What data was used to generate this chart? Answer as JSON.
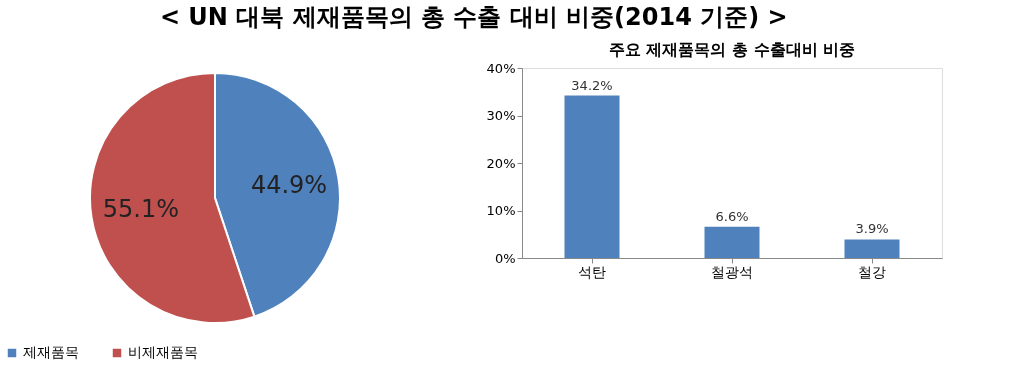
{
  "chart_data": [
    {
      "type": "pie",
      "title": "< UN 대북 제재품목의 총 수출 대비 비중(2014 기준) >",
      "categories": [
        "제재품목",
        "비제재품목"
      ],
      "values": [
        44.9,
        55.1
      ],
      "colors": [
        "#4f81bd",
        "#c0504d"
      ],
      "value_labels": [
        "44.9%",
        "55.1%"
      ],
      "legend": "bottom"
    },
    {
      "type": "bar",
      "title": "주요 제재품목의 총 수출대비 비중",
      "categories": [
        "석탄",
        "철광석",
        "철강"
      ],
      "values": [
        34.2,
        6.6,
        3.9
      ],
      "color": "#4f81bd",
      "value_labels": [
        "34.2%",
        "6.6%",
        "3.9%"
      ],
      "ylim": [
        0,
        40
      ],
      "yticks": [
        {
          "value": 0,
          "label": "0%"
        },
        {
          "value": 10,
          "label": "10%"
        },
        {
          "value": 20,
          "label": "20%"
        },
        {
          "value": 30,
          "label": "30%"
        },
        {
          "value": 40,
          "label": "40%"
        }
      ],
      "grid": false
    }
  ]
}
